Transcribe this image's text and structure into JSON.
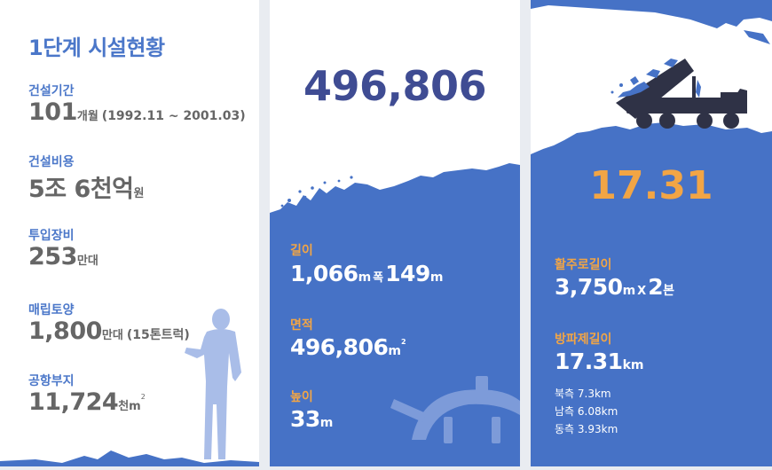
{
  "panel1": {
    "title": "1단계 시설현황",
    "items": [
      {
        "label": "건설기간",
        "value": "101",
        "unit": "개월",
        "note": "(1992.11 ~ 2001.03)"
      },
      {
        "label": "건설비용",
        "value": "5조 6천억",
        "unit": "원"
      },
      {
        "label": "투입장비",
        "value": "253",
        "unit": "만대"
      },
      {
        "label": "매립토양",
        "value": "1,800",
        "unit": "만대",
        "note": "(15톤트럭)"
      },
      {
        "label": "공항부지",
        "value": "11,724",
        "unit": "천m",
        "sup": "2"
      }
    ]
  },
  "panel2": {
    "headline": "496,806",
    "items": [
      {
        "label": "길이",
        "v1": "1,066",
        "u1": "m",
        "mid": "폭",
        "v2": "149",
        "u2": "m"
      },
      {
        "label": "면적",
        "value": "496,806",
        "unit": "m",
        "sup": "2"
      },
      {
        "label": "높이",
        "value": "33",
        "unit": "m"
      }
    ]
  },
  "panel3": {
    "headline": "17.31",
    "items": [
      {
        "label": "활주로길이",
        "v1": "3,750",
        "u1": "m",
        "mid": "X",
        "v2": "2",
        "u2": "본"
      },
      {
        "label": "방파제길이",
        "value": "17.31",
        "unit": "km"
      }
    ],
    "details": [
      "북측 7.3km",
      "남측 6.08km",
      "동측 3.93km"
    ]
  },
  "colors": {
    "accent_blue": "#4672c6",
    "headline_navy": "#3f4c93",
    "orange": "#f2a545",
    "text_gray": "#666666"
  }
}
